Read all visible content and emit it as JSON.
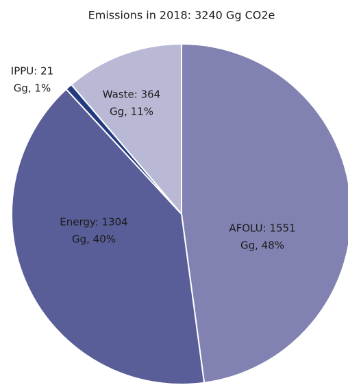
{
  "chart_data": {
    "type": "pie",
    "title": "Emissions in 2018: 3240 Gg CO2e",
    "categories": [
      "AFOLU",
      "Energy",
      "IPPU",
      "Waste"
    ],
    "values": [
      1551,
      1304,
      21,
      364
    ],
    "value_labels": [
      [
        "AFOLU: 1551",
        "Gg, 48%"
      ],
      [
        "Energy: 1304",
        "Gg, 40%"
      ],
      [
        "IPPU: 21",
        "Gg, 1%"
      ],
      [
        "Waste: 364",
        "Gg, 11%"
      ]
    ],
    "colors": [
      "#8182b1",
      "#5a5e98",
      "#243a80",
      "#b9b9d6"
    ]
  }
}
